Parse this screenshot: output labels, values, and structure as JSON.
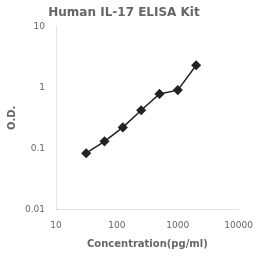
{
  "chart_data": {
    "type": "line",
    "title": "Human IL-17 ELISA Kit",
    "xlabel": "Concentration(pg/ml)",
    "ylabel": "O.D.",
    "x": [
      31.25,
      62.5,
      125,
      250,
      500,
      1000,
      2000
    ],
    "values": [
      0.083,
      0.13,
      0.22,
      0.42,
      0.78,
      0.9,
      2.3
    ],
    "color": "#222222",
    "marker": "diamond",
    "log": true,
    "xlim": [
      10,
      10000
    ],
    "ylim": [
      0.01,
      10
    ],
    "xticks": [
      10,
      100,
      1000,
      10000
    ],
    "yticks": [
      0.01,
      0.1,
      1,
      10
    ],
    "grid": false
  }
}
